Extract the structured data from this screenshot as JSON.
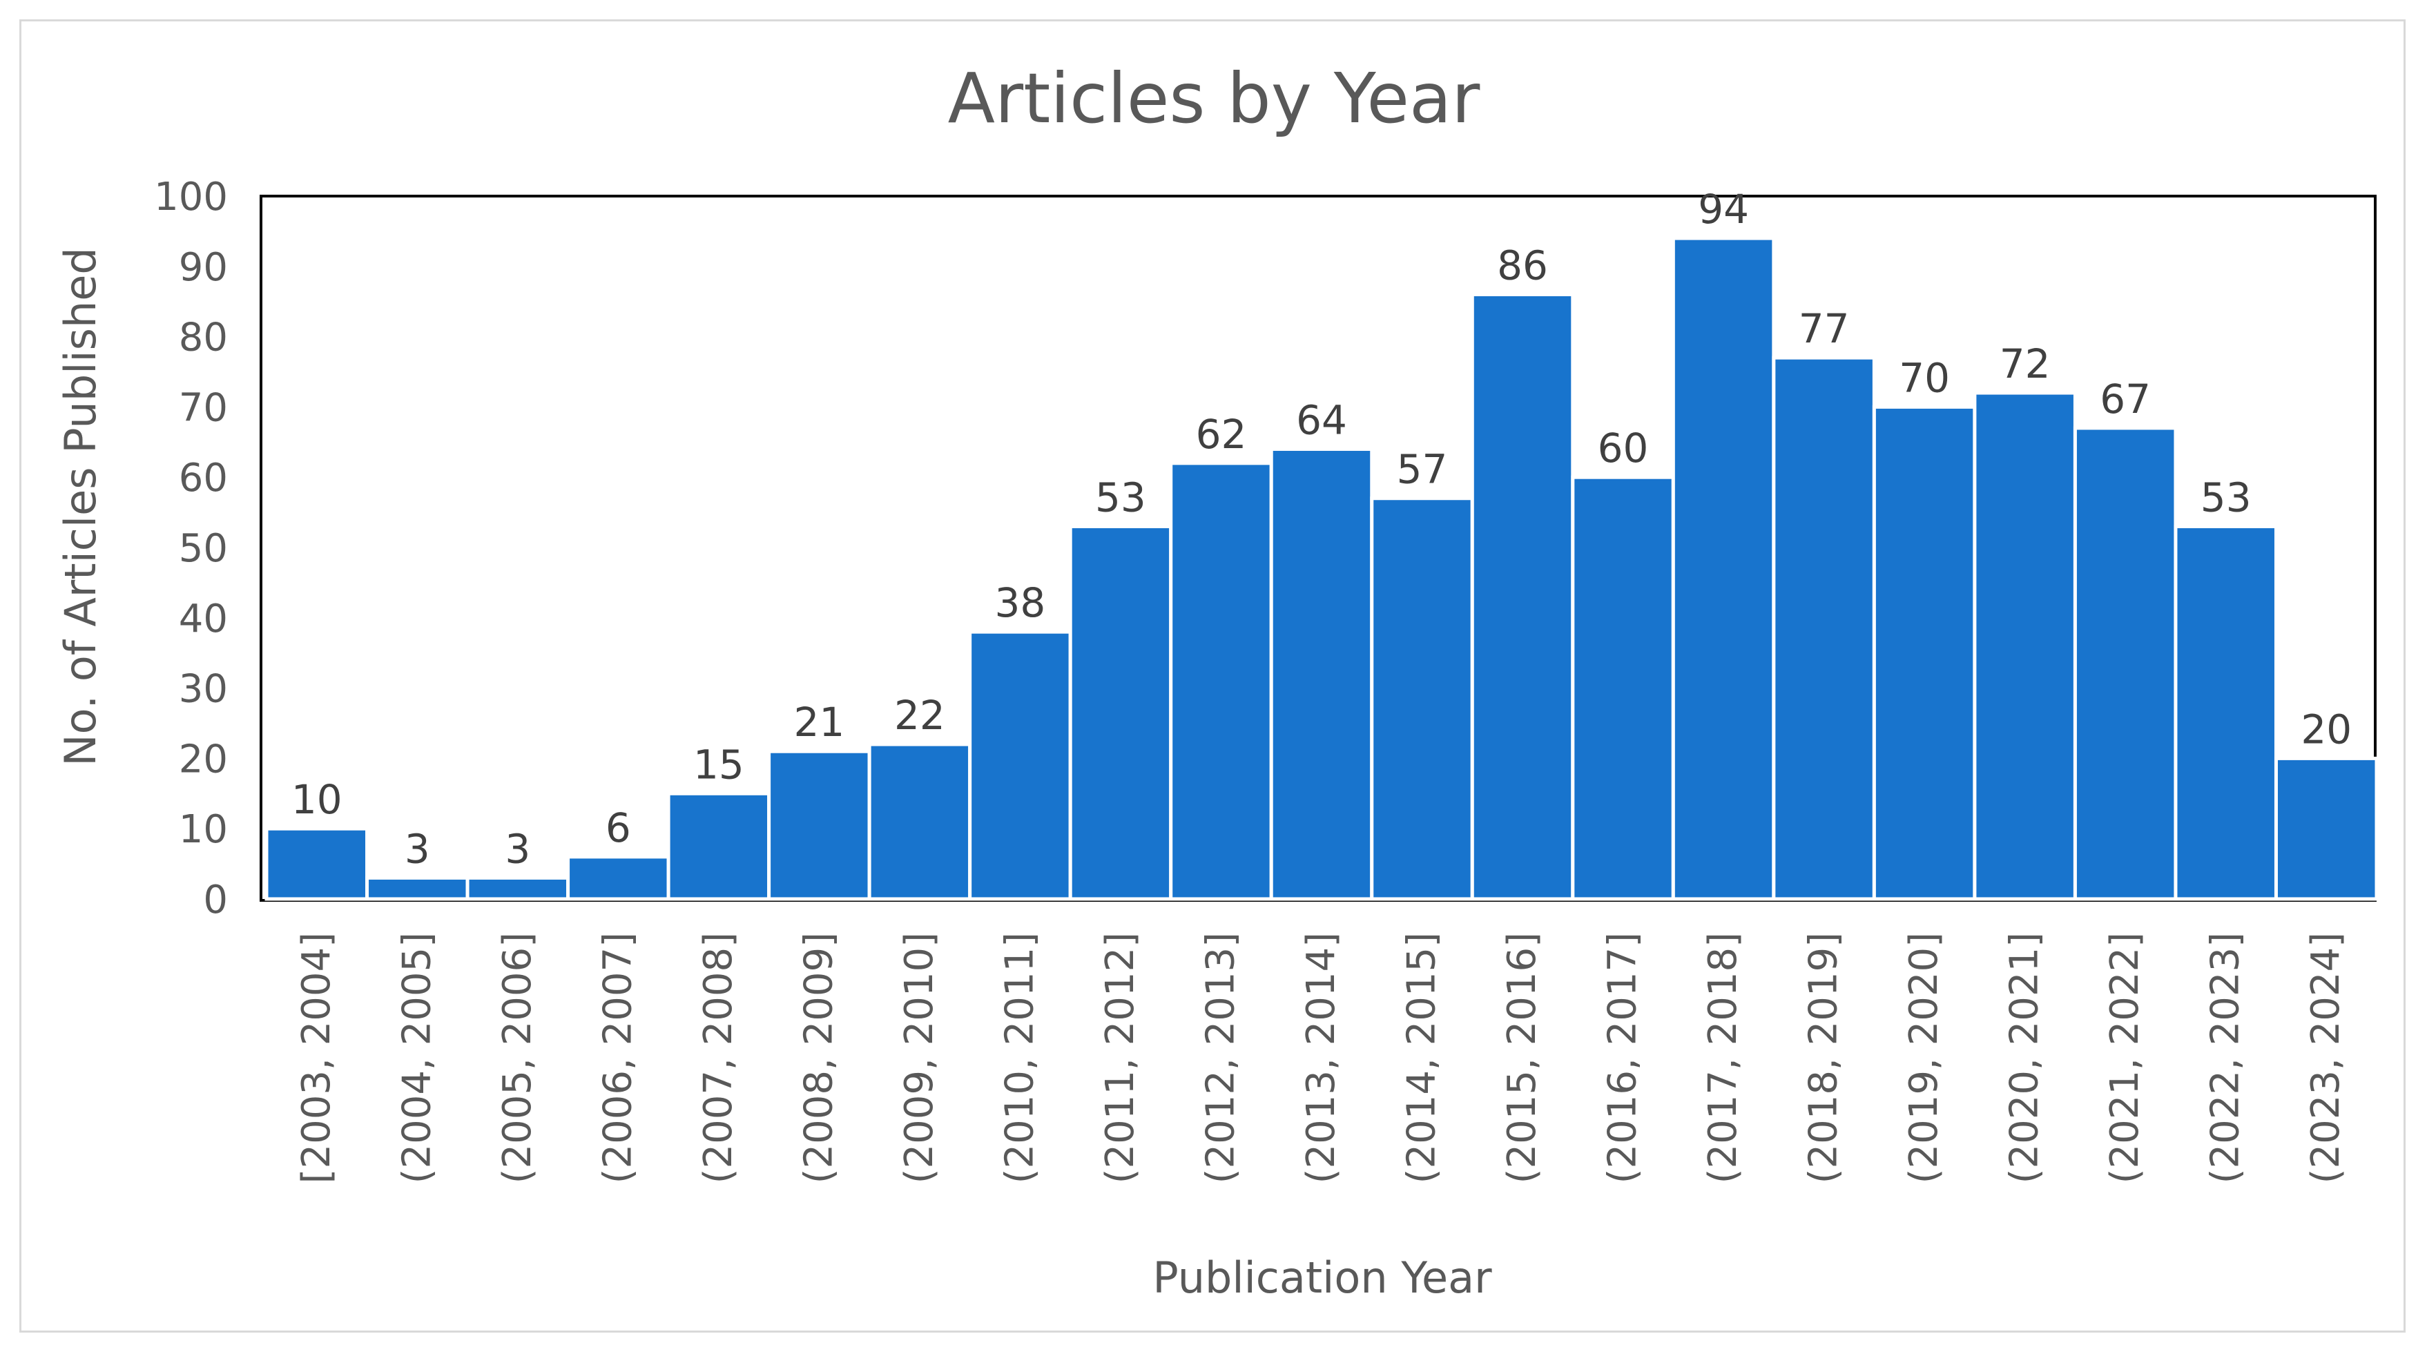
{
  "chart_data": {
    "type": "bar",
    "title": "Articles by Year",
    "xlabel": "Publication Year",
    "ylabel": "No. of Articles Published",
    "ylim": [
      0,
      100
    ],
    "y_ticks": [
      0,
      10,
      20,
      30,
      40,
      50,
      60,
      70,
      80,
      90,
      100
    ],
    "categories": [
      "[2003, 2004]",
      "(2004, 2005]",
      "(2005, 2006]",
      "(2006, 2007]",
      "(2007, 2008]",
      "(2008, 2009]",
      "(2009, 2010]",
      "(2010, 2011]",
      "(2011, 2012]",
      "(2012, 2013]",
      "(2013, 2014]",
      "(2014, 2015]",
      "(2015, 2016]",
      "(2016, 2017]",
      "(2017, 2018]",
      "(2018, 2019]",
      "(2019, 2020]",
      "(2020, 2021]",
      "(2021, 2022]",
      "(2022, 2023]",
      "(2023, 2024]"
    ],
    "values": [
      10,
      3,
      3,
      6,
      15,
      21,
      22,
      38,
      53,
      62,
      64,
      57,
      86,
      60,
      94,
      77,
      70,
      72,
      67,
      53,
      20
    ],
    "data_labels": true,
    "grid": false,
    "legend": "none",
    "bar_color": "#1874CD",
    "plot_border_color": "#000000",
    "text_color": "#595959"
  }
}
